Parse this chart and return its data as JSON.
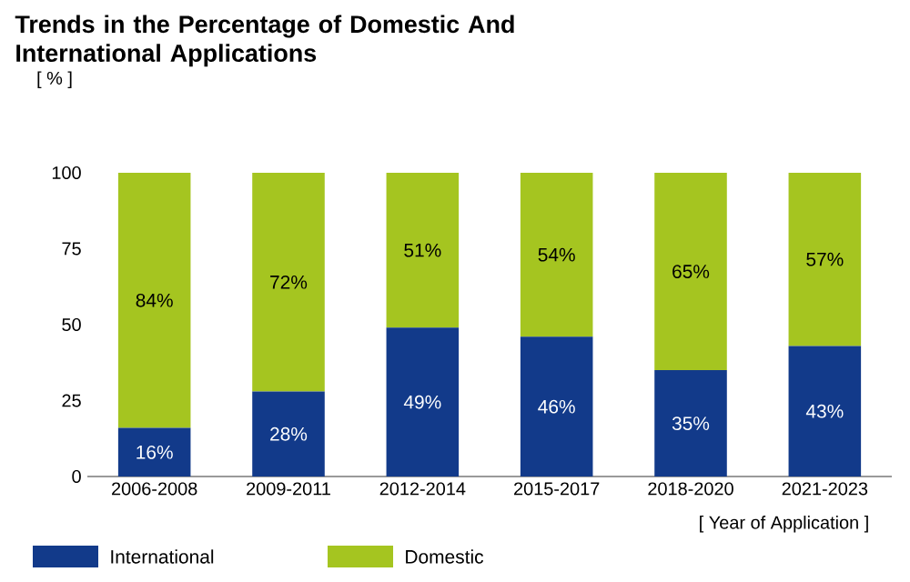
{
  "chart_data": {
    "type": "bar",
    "stacked": true,
    "title": "Trends in the Percentage of Domestic And International Applications",
    "ylabel": "[ % ]",
    "xlabel": "[ Year of Application ]",
    "categories": [
      "2006-2008",
      "2009-2011",
      "2012-2014",
      "2015-2017",
      "2018-2020",
      "2021-2023"
    ],
    "series": [
      {
        "name": "International",
        "color": "#123a8a",
        "values": [
          16,
          28,
          49,
          46,
          35,
          43
        ],
        "value_labels": [
          "16%",
          "28%",
          "49%",
          "46%",
          "35%",
          "43%"
        ]
      },
      {
        "name": "Domestic",
        "color": "#a5c520",
        "values": [
          84,
          72,
          51,
          54,
          65,
          57
        ],
        "value_labels": [
          "84%",
          "72%",
          "51%",
          "54%",
          "65%",
          "57%"
        ]
      }
    ],
    "ylim": [
      0,
      100
    ],
    "yticks": [
      0,
      25,
      50,
      75,
      100
    ],
    "grid": false,
    "legend": "bottom left"
  }
}
